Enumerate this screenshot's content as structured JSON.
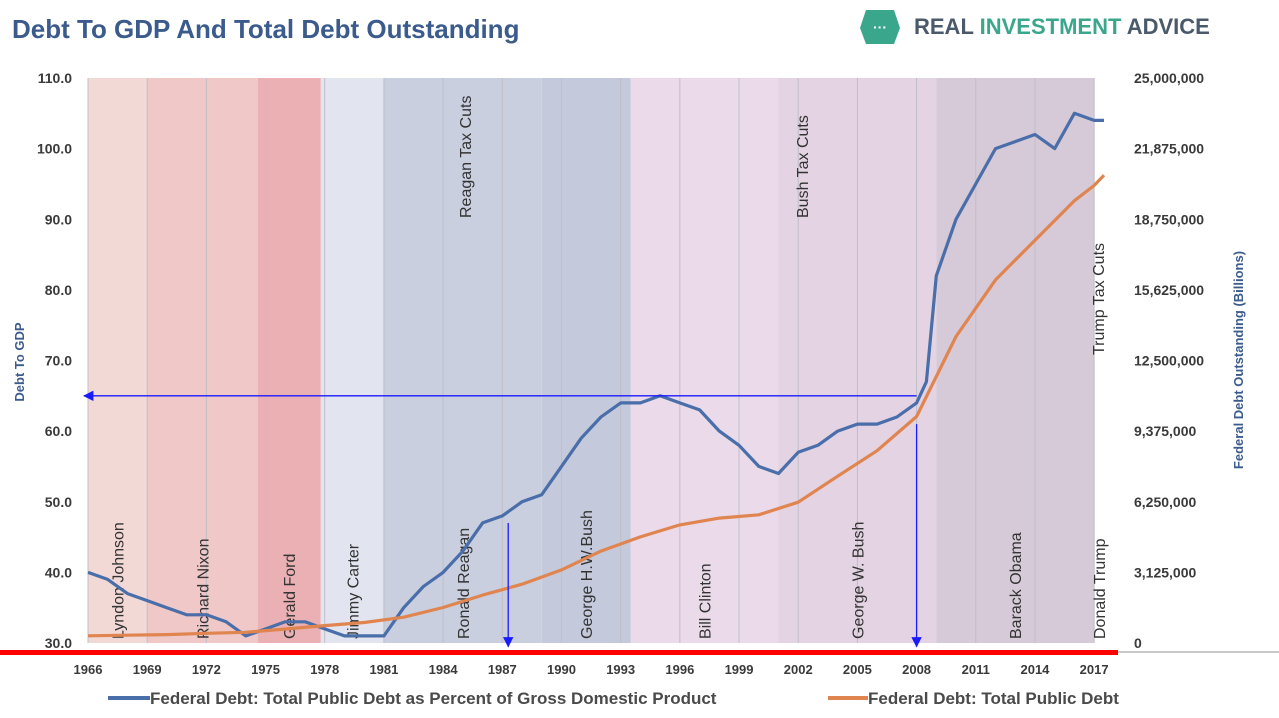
{
  "header": {
    "title": "Debt To GDP And Total Debt Outstanding",
    "logo_icon": "speech-bubble-icon",
    "logo_part1": "REAL ",
    "logo_part2": "INVESTMENT",
    "logo_part3": " ADVICE"
  },
  "colors": {
    "debt_gdp": "#4a6ea9",
    "total_debt": "#e0854f",
    "annotation": "#1a1aff",
    "red_bar": "#ff0000"
  },
  "chart_data": {
    "type": "line",
    "title": "Debt To GDP And Total Debt Outstanding",
    "ylabel_left": "Debt To GDP",
    "ylabel_right": "Federal Debt Outstanding (Billions)",
    "ylim_left": [
      30,
      110
    ],
    "ylim_right": [
      0,
      25000000
    ],
    "xlim": [
      1966,
      2018
    ],
    "yticks_left": [
      "110.0",
      "100.0",
      "90.0",
      "80.0",
      "70.0",
      "60.0",
      "50.0",
      "40.0",
      "30.0"
    ],
    "yticks_right": [
      "25,000,000",
      "21,875,000",
      "18,750,000",
      "15,625,000",
      "12,500,000",
      "9,375,000",
      "6,250,000",
      "3,125,000",
      "0"
    ],
    "xticks": [
      "1966",
      "1969",
      "1972",
      "1975",
      "1978",
      "1981",
      "1984",
      "1987",
      "1990",
      "1993",
      "1996",
      "1999",
      "2002",
      "2005",
      "2008",
      "2011",
      "2014",
      "2017"
    ],
    "eras": [
      {
        "name": "Lyndon Johnson",
        "start": 1966,
        "end": 1969,
        "color": "#f3d9d6"
      },
      {
        "name": "Richard Nixon",
        "start": 1969,
        "end": 1974.6,
        "color": "#f0c8c8"
      },
      {
        "name": "Gerald Ford",
        "start": 1974.6,
        "end": 1977.8,
        "color": "#eab0b3"
      },
      {
        "name": "Jimmy Carter",
        "start": 1977.8,
        "end": 1981,
        "color": "#e2e4f0"
      },
      {
        "name": "Ronald Reagan",
        "start": 1981,
        "end": 1989,
        "color": "#c9cfdf"
      },
      {
        "name": "George H.W.Bush",
        "start": 1989,
        "end": 1993.5,
        "color": "#c4cadc"
      },
      {
        "name": "Bill Clinton",
        "start": 1993.5,
        "end": 2001,
        "color": "#eadaea"
      },
      {
        "name": "George W. Bush",
        "start": 2001,
        "end": 2009,
        "color": "#e3d3e3"
      },
      {
        "name": "Barack Obama",
        "start": 2009,
        "end": 2017,
        "color": "#d6c9d8"
      },
      {
        "name": "Donald Trump",
        "start": 2017,
        "end": 2018,
        "color": "#ffffff"
      }
    ],
    "policy_annotations": [
      {
        "text": "Reagan Tax Cuts",
        "year": 1985.1
      },
      {
        "text": "Bush Tax Cuts",
        "year": 2002.2
      },
      {
        "text": "Trump Tax Cuts",
        "year": 2017.2
      }
    ],
    "series": [
      {
        "name": "Federal Debt: Total Public Debt as Percent of Gross Domestic Product",
        "axis": "left",
        "x": [
          1966,
          1967,
          1968,
          1969,
          1970,
          1971,
          1972,
          1973,
          1974,
          1975,
          1976,
          1977,
          1978,
          1979,
          1980,
          1981,
          1982,
          1983,
          1984,
          1985,
          1986,
          1987,
          1988,
          1989,
          1990,
          1991,
          1992,
          1993,
          1994,
          1995,
          1996,
          1997,
          1998,
          1999,
          2000,
          2001,
          2002,
          2003,
          2004,
          2005,
          2006,
          2007,
          2008,
          2008.5,
          2009,
          2010,
          2011,
          2012,
          2013,
          2014,
          2015,
          2016,
          2017,
          2017.5
        ],
        "values": [
          40,
          39,
          37,
          36,
          35,
          34,
          34,
          33,
          31,
          32,
          33,
          33,
          32,
          31,
          31,
          31,
          35,
          38,
          40,
          43,
          47,
          48,
          50,
          51,
          55,
          59,
          62,
          64,
          64,
          65,
          64,
          63,
          60,
          58,
          55,
          54,
          57,
          58,
          60,
          61,
          61,
          62,
          64,
          67,
          82,
          90,
          95,
          100,
          101,
          102,
          100,
          105,
          104,
          104
        ]
      },
      {
        "name": "Federal Debt: Total Public Debt",
        "axis": "right",
        "x": [
          1966,
          1968,
          1970,
          1972,
          1974,
          1976,
          1978,
          1980,
          1982,
          1984,
          1986,
          1988,
          1990,
          1992,
          1994,
          1996,
          1998,
          2000,
          2002,
          2004,
          2006,
          2008,
          2010,
          2012,
          2014,
          2016,
          2017,
          2017.5
        ],
        "values": [
          320000,
          347000,
          370000,
          427000,
          475000,
          620000,
          770000,
          907000,
          1142000,
          1572000,
          2120000,
          2600000,
          3233000,
          4065000,
          4693000,
          5225000,
          5526000,
          5674000,
          6228000,
          7379000,
          8507000,
          10024000,
          13562000,
          16066000,
          17824000,
          19573000,
          20245000,
          20700000
        ]
      }
    ],
    "annotation_lines": [
      {
        "type": "horizontal",
        "from_year": 2008,
        "to_year": 1965.8,
        "value": 65
      },
      {
        "type": "vertical",
        "year": 1987.3,
        "from_value": 47,
        "to_value": 29.5
      },
      {
        "type": "vertical",
        "year": 2008,
        "from_value": 61,
        "to_value": 29.5
      }
    ],
    "legend": [
      "Federal Debt: Total Public Debt as Percent of Gross Domestic Product",
      "Federal Debt: Total Public Debt"
    ],
    "legend_position": "bottom"
  }
}
